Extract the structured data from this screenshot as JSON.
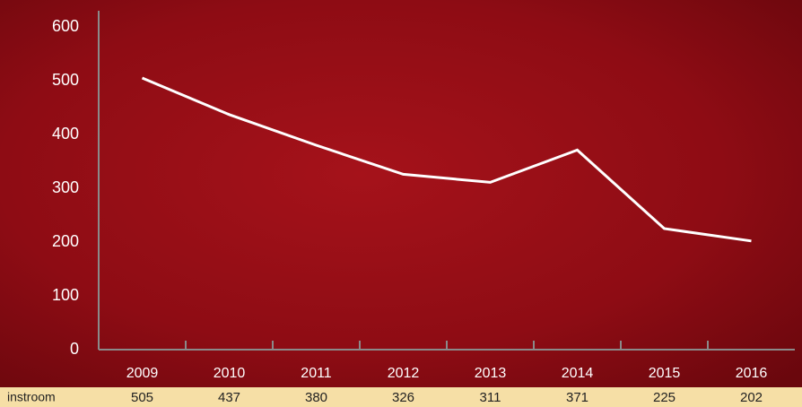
{
  "chart_data": {
    "type": "line",
    "categories": [
      "2009",
      "2010",
      "2011",
      "2012",
      "2013",
      "2014",
      "2015",
      "2016"
    ],
    "series": [
      {
        "name": "instroom",
        "color": "#ffffff",
        "values": [
          505,
          437,
          380,
          326,
          311,
          371,
          225,
          202
        ]
      }
    ],
    "ylim": [
      0,
      600
    ],
    "yticks": [
      0,
      100,
      200,
      300,
      400,
      500,
      600
    ],
    "grid": false
  }
}
